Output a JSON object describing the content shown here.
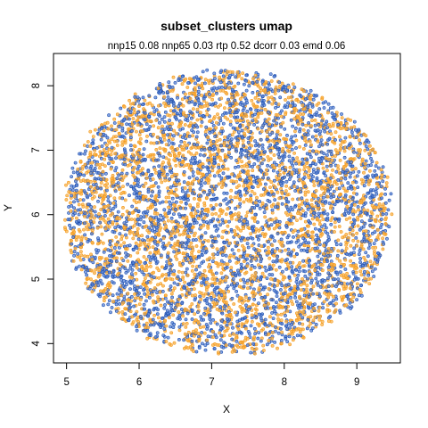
{
  "chart_data": {
    "type": "scatter",
    "title": "subset_clusters umap",
    "subtitle": "nnp15 0.08 nnp65 0.03 rtp 0.52 dcorr 0.03 emd 0.06",
    "xlabel": "X",
    "ylabel": "Y",
    "xlim": [
      4.82,
      9.6
    ],
    "ylim": [
      3.7,
      8.5
    ],
    "x_ticks": [
      5,
      6,
      7,
      8,
      9
    ],
    "y_ticks": [
      4,
      5,
      6,
      7,
      8
    ],
    "grid": false,
    "legend": "none",
    "point_cloud": {
      "shape": "disc",
      "center": [
        7.22,
        6.03
      ],
      "radius_x": 2.25,
      "radius_y": 2.2,
      "approx_points_per_series": 3000
    },
    "series": [
      {
        "color": "#1f4fb0",
        "fill": "#5b85d6"
      },
      {
        "color": "#f59a1c",
        "fill": "#f7b24a"
      }
    ]
  }
}
